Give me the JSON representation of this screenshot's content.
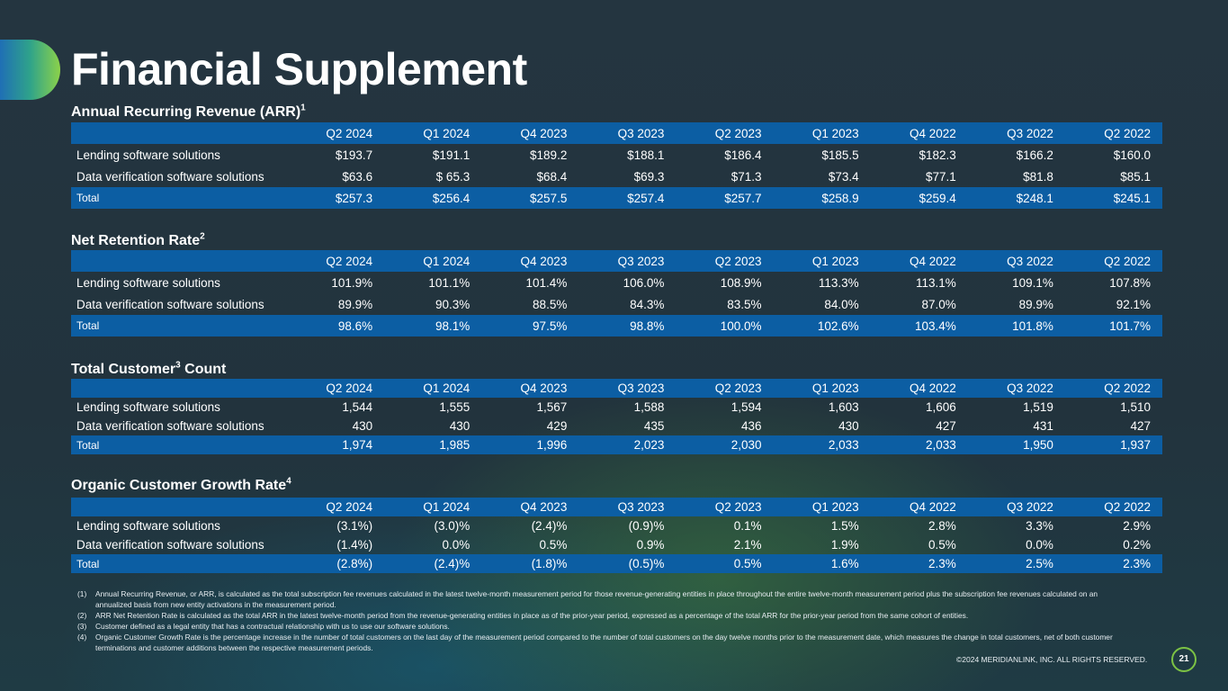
{
  "page_title": "Financial Supplement",
  "quarters": [
    "Q2 2024",
    "Q1 2024",
    "Q4 2023",
    "Q3 2023",
    "Q2 2023",
    "Q1 2023",
    "Q4 2022",
    "Q3 2022",
    "Q2 2022"
  ],
  "sections": {
    "arr": {
      "title": "Annual Recurring Revenue (ARR)",
      "superscript": "1",
      "rows": {
        "lending": {
          "label": "Lending software solutions",
          "values": [
            "$193.7",
            "$191.1",
            "$189.2",
            "$188.1",
            "$186.4",
            "$185.5",
            "$182.3",
            "$166.2",
            "$160.0"
          ]
        },
        "data_verification": {
          "label": "Data verification software solutions",
          "values": [
            "$63.6",
            "$ 65.3",
            "$68.4",
            "$69.3",
            "$71.3",
            "$73.4",
            "$77.1",
            "$81.8",
            "$85.1"
          ]
        },
        "total": {
          "label": "Total",
          "values": [
            "$257.3",
            "$256.4",
            "$257.5",
            "$257.4",
            "$257.7",
            "$258.9",
            "$259.4",
            "$248.1",
            "$245.1"
          ]
        }
      }
    },
    "nrr": {
      "title": "Net Retention Rate",
      "superscript": "2",
      "rows": {
        "lending": {
          "label": "Lending software solutions",
          "values": [
            "101.9%",
            "101.1%",
            "101.4%",
            "106.0%",
            "108.9%",
            "113.3%",
            "113.1%",
            "109.1%",
            "107.8%"
          ]
        },
        "data_verification": {
          "label": "Data verification software solutions",
          "values": [
            "89.9%",
            "90.3%",
            "88.5%",
            "84.3%",
            "83.5%",
            "84.0%",
            "87.0%",
            "89.9%",
            "92.1%"
          ]
        },
        "total": {
          "label": "Total",
          "values": [
            "98.6%",
            "98.1%",
            "97.5%",
            "98.8%",
            "100.0%",
            "102.6%",
            "103.4%",
            "101.8%",
            "101.7%"
          ]
        }
      }
    },
    "customers": {
      "title_pre": "Total Customer",
      "superscript": "3",
      "title_post": " Count",
      "rows": {
        "lending": {
          "label": "Lending software solutions",
          "values": [
            "1,544",
            "1,555",
            "1,567",
            "1,588",
            "1,594",
            "1,603",
            "1,606",
            "1,519",
            "1,510"
          ]
        },
        "data_verification": {
          "label": "Data verification software solutions",
          "values": [
            "430",
            "430",
            "429",
            "435",
            "436",
            "430",
            "427",
            "431",
            "427"
          ]
        },
        "total": {
          "label": "Total",
          "values": [
            "1,974",
            "1,985",
            "1,996",
            "2,023",
            "2,030",
            "2,033",
            "2,033",
            "1,950",
            "1,937"
          ]
        }
      }
    },
    "growth": {
      "title": "Organic Customer Growth Rate",
      "superscript": "4",
      "rows": {
        "lending": {
          "label": "Lending software solutions",
          "values": [
            "(3.1%)",
            "(3.0)%",
            "(2.4)%",
            "(0.9)%",
            "0.1%",
            "1.5%",
            "2.8%",
            "3.3%",
            "2.9%"
          ]
        },
        "data_verification": {
          "label": "Data verification software solutions",
          "values": [
            "(1.4%)",
            "0.0%",
            "0.5%",
            "0.9%",
            "2.1%",
            "1.9%",
            "0.5%",
            "0.0%",
            "0.2%"
          ]
        },
        "total": {
          "label": "Total",
          "values": [
            "(2.8%)",
            "(2.4)%",
            "(1.8)%",
            "(0.5)%",
            "0.5%",
            "1.6%",
            "2.3%",
            "2.5%",
            "2.3%"
          ]
        }
      }
    }
  },
  "footnotes": [
    {
      "num": "(1)",
      "text": "Annual Recurring Revenue, or ARR, is calculated as the total subscription fee revenues calculated in the latest twelve-month measurement period for those revenue-generating entities in place throughout the entire twelve-month measurement period plus the subscription fee revenues calculated on an annualized basis from new entity activations in the measurement period."
    },
    {
      "num": "(2)",
      "text": "ARR Net Retention Rate is calculated as the total ARR in the latest twelve-month period from the revenue-generating entities in place as of the prior-year period, expressed as a percentage of the total ARR for the prior-year period from the same cohort of entities."
    },
    {
      "num": "(3)",
      "text": "Customer defined as a legal entity that has a contractual relationship with us to use our software solutions."
    },
    {
      "num": "(4)",
      "text": "Organic Customer Growth Rate is the percentage increase in the number of total customers on the last day of the measurement period compared to the number of total customers on the day twelve months prior to the measurement date, which measures the change in total customers, net of both customer terminations and customer additions between the respective measurement periods."
    }
  ],
  "copyright": "©2024 MERIDIANLINK, INC. ALL RIGHTS RESERVED.",
  "page_number": "21"
}
